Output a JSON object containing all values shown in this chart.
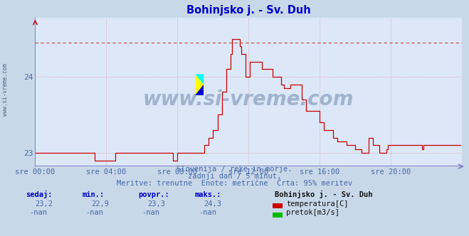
{
  "title": "Bohinjsko j. - Sv. Duh",
  "title_color": "#0000cc",
  "bg_color": "#c8d8e8",
  "plot_bg_color": "#dce8f8",
  "grid_color": "#dd8888",
  "axis_bottom_color": "#8888cc",
  "temp_color": "#cc0000",
  "flow_color": "#00bb00",
  "dashed_line_color": "#cc4444",
  "dashed_line_y": 24.45,
  "xmin": 0,
  "xmax": 288,
  "ymin": 22.82,
  "ymax": 24.78,
  "yticks": [
    23,
    24
  ],
  "xtick_labels": [
    "sre 00:00",
    "sre 04:00",
    "sre 08:00",
    "sre 12:00",
    "sre 16:00",
    "sre 20:00"
  ],
  "xtick_positions": [
    0,
    48,
    96,
    144,
    192,
    240
  ],
  "tick_color": "#4466aa",
  "subtitle1": "Slovenija / reke in morje.",
  "subtitle2": "zadnji dan / 5 minut.",
  "subtitle3": "Meritve: trenutne  Enote: metrične  Črta: 95% meritev",
  "subtitle_color": "#4466aa",
  "table_headers": [
    "sedaj:",
    "min.:",
    "povpr.:",
    "maks.:"
  ],
  "table_values_temp": [
    "23,2",
    "22,9",
    "23,3",
    "24,3"
  ],
  "table_values_flow": [
    "-nan",
    "-nan",
    "-nan",
    "-nan"
  ],
  "station_name": "Bohinjsko j. - Sv. Duh",
  "legend_temp": "temperatura[C]",
  "legend_flow": "pretok[m3/s]",
  "watermark": "www.si-vreme.com",
  "watermark_color": "#1a3a6a",
  "left_label": "www.si-vreme.com",
  "temp_profile": [
    [
      0,
      23.0
    ],
    [
      20,
      22.9
    ],
    [
      36,
      23.0
    ],
    [
      96,
      23.0
    ],
    [
      100,
      23.0
    ],
    [
      105,
      23.1
    ],
    [
      110,
      23.2
    ],
    [
      115,
      23.3
    ],
    [
      120,
      23.5
    ],
    [
      124,
      23.8
    ],
    [
      127,
      24.1
    ],
    [
      130,
      24.3
    ],
    [
      132,
      24.5
    ],
    [
      133,
      24.7
    ],
    [
      135,
      24.5
    ],
    [
      137,
      24.4
    ],
    [
      139,
      24.3
    ],
    [
      141,
      24.0
    ],
    [
      145,
      24.0
    ],
    [
      147,
      24.2
    ],
    [
      153,
      24.2
    ],
    [
      155,
      24.1
    ],
    [
      158,
      24.1
    ],
    [
      160,
      24.0
    ],
    [
      163,
      24.0
    ],
    [
      165,
      23.9
    ],
    [
      168,
      23.85
    ],
    [
      172,
      23.85
    ],
    [
      174,
      23.9
    ],
    [
      178,
      23.9
    ],
    [
      180,
      23.75
    ],
    [
      183,
      23.7
    ],
    [
      186,
      23.55
    ],
    [
      190,
      23.55
    ],
    [
      192,
      23.4
    ],
    [
      196,
      23.3
    ],
    [
      200,
      23.2
    ],
    [
      205,
      23.15
    ],
    [
      210,
      23.1
    ],
    [
      215,
      23.05
    ],
    [
      220,
      23.0
    ],
    [
      224,
      23.2
    ],
    [
      228,
      23.1
    ],
    [
      232,
      23.0
    ],
    [
      236,
      23.05
    ],
    [
      240,
      23.1
    ],
    [
      288,
      23.1
    ]
  ]
}
